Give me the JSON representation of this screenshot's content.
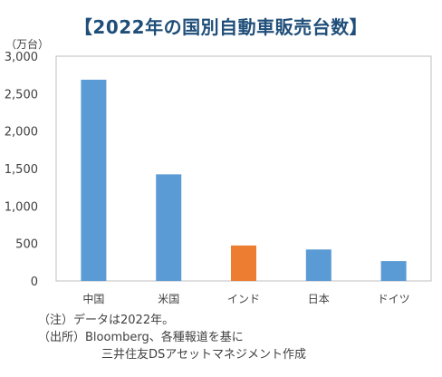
{
  "chart_data": {
    "type": "bar",
    "title": "【2022年の国別自動車販売台数】",
    "ylabel": "（万台）",
    "xlabel": "",
    "categories": [
      "中国",
      "米国",
      "インド",
      "日本",
      "ドイツ"
    ],
    "values": [
      2686,
      1423,
      473,
      420,
      265
    ],
    "ylim": [
      0,
      3000
    ],
    "yticks": [
      0,
      500,
      1000,
      1500,
      2000,
      2500,
      3000
    ],
    "ytick_labels": [
      "0",
      "500",
      "1,000",
      "1,500",
      "2,000",
      "2,500",
      "3,000"
    ],
    "bar_colors": [
      "#5b9bd5",
      "#5b9bd5",
      "#ed7d31",
      "#5b9bd5",
      "#5b9bd5"
    ],
    "grid": false,
    "frame_color": "#bfbfbf"
  },
  "notes": {
    "line1": "（注）データは2022年。",
    "line2": "（出所）Bloomberg、各種報道を基に",
    "line3": "三井住友DSアセットマネジメント作成"
  }
}
